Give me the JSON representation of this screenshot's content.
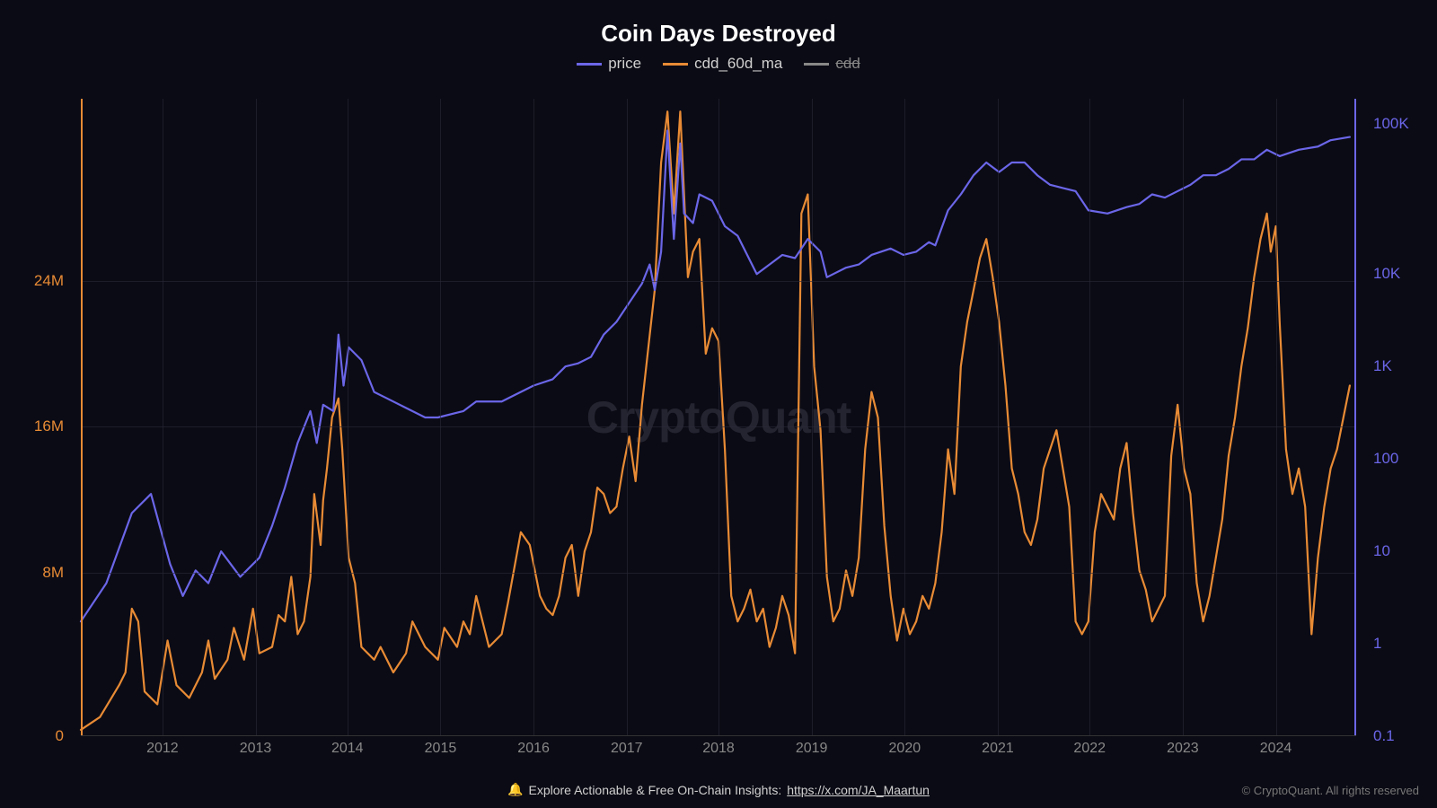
{
  "chart": {
    "type": "line-dual-axis",
    "title": "Coin Days Destroyed",
    "background_color": "#0b0b15",
    "grid_color": "#2a2a38",
    "watermark_text": "CryptoQuant",
    "watermark_color": "#3a3a48",
    "title_fontsize": 26,
    "legend_fontsize": 17,
    "tick_fontsize": 17,
    "legend": [
      {
        "label": "price",
        "color": "#6b66e8",
        "disabled": false
      },
      {
        "label": "cdd_60d_ma",
        "color": "#e88b35",
        "disabled": false
      },
      {
        "label": "cdd",
        "color": "#888888",
        "disabled": true
      }
    ],
    "x_axis": {
      "ticks": [
        "2012",
        "2013",
        "2014",
        "2015",
        "2016",
        "2017",
        "2018",
        "2019",
        "2020",
        "2021",
        "2022",
        "2023",
        "2024"
      ],
      "positions_pct": [
        6.4,
        13.7,
        20.9,
        28.2,
        35.5,
        42.8,
        50.0,
        57.3,
        64.6,
        71.9,
        79.1,
        86.4,
        93.7
      ],
      "color": "#888"
    },
    "y_axis_left": {
      "label_color": "#e88b35",
      "ticks": [
        "0",
        "8M",
        "16M",
        "24M"
      ],
      "positions_pct": [
        100,
        74.3,
        51.4,
        28.6
      ],
      "axis_color": "#e88b35"
    },
    "y_axis_right": {
      "label_color": "#6b66e8",
      "scale": "log",
      "ticks": [
        "0.1",
        "1",
        "10",
        "100",
        "1K",
        "10K",
        "100K"
      ],
      "positions_pct": [
        100,
        85.5,
        71.0,
        56.5,
        42.0,
        27.5,
        4.0
      ],
      "axis_color": "#6b66e8"
    },
    "series": {
      "price": {
        "color": "#6b66e8",
        "line_width": 2.2,
        "axis": "right",
        "points": [
          [
            0,
            82
          ],
          [
            2,
            76
          ],
          [
            4,
            65
          ],
          [
            5.5,
            62
          ],
          [
            7,
            73
          ],
          [
            8,
            78
          ],
          [
            9,
            74
          ],
          [
            10,
            76
          ],
          [
            11,
            71
          ],
          [
            12.5,
            75
          ],
          [
            14,
            72
          ],
          [
            15,
            67
          ],
          [
            16,
            61
          ],
          [
            17,
            54
          ],
          [
            18,
            49
          ],
          [
            18.5,
            54
          ],
          [
            19,
            48
          ],
          [
            19.8,
            49
          ],
          [
            20.2,
            37
          ],
          [
            20.6,
            45
          ],
          [
            21,
            39
          ],
          [
            22,
            41
          ],
          [
            23,
            46
          ],
          [
            24,
            47
          ],
          [
            25.5,
            48.5
          ],
          [
            27,
            50
          ],
          [
            28,
            50
          ],
          [
            30,
            49
          ],
          [
            31,
            47.5
          ],
          [
            33,
            47.5
          ],
          [
            34,
            46.5
          ],
          [
            35.5,
            45
          ],
          [
            37,
            44
          ],
          [
            38,
            42
          ],
          [
            39,
            41.5
          ],
          [
            40,
            40.5
          ],
          [
            41,
            37
          ],
          [
            42,
            35
          ],
          [
            43,
            32
          ],
          [
            44,
            29
          ],
          [
            44.6,
            26
          ],
          [
            45,
            30
          ],
          [
            45.5,
            24
          ],
          [
            46,
            5
          ],
          [
            46.5,
            22
          ],
          [
            47,
            7
          ],
          [
            47.3,
            18
          ],
          [
            48,
            19.5
          ],
          [
            48.5,
            15
          ],
          [
            49.5,
            16
          ],
          [
            50.5,
            20
          ],
          [
            51.5,
            21.5
          ],
          [
            53,
            27.5
          ],
          [
            54,
            26
          ],
          [
            55,
            24.5
          ],
          [
            56,
            25
          ],
          [
            57,
            22
          ],
          [
            58,
            24
          ],
          [
            58.5,
            28
          ],
          [
            60,
            26.5
          ],
          [
            61,
            26
          ],
          [
            62,
            24.5
          ],
          [
            63.5,
            23.5
          ],
          [
            64.5,
            24.5
          ],
          [
            65.5,
            24
          ],
          [
            66.5,
            22.5
          ],
          [
            67,
            23
          ],
          [
            68,
            17.5
          ],
          [
            69,
            15
          ],
          [
            70,
            12
          ],
          [
            71,
            10
          ],
          [
            72,
            11.5
          ],
          [
            73,
            10
          ],
          [
            74,
            10
          ],
          [
            75,
            12
          ],
          [
            76,
            13.5
          ],
          [
            77,
            14
          ],
          [
            78,
            14.5
          ],
          [
            79,
            17.5
          ],
          [
            80.5,
            18
          ],
          [
            82,
            17
          ],
          [
            83,
            16.5
          ],
          [
            84,
            15
          ],
          [
            85,
            15.5
          ],
          [
            86,
            14.5
          ],
          [
            87,
            13.5
          ],
          [
            88,
            12
          ],
          [
            89,
            12
          ],
          [
            90,
            11
          ],
          [
            91,
            9.5
          ],
          [
            92,
            9.5
          ],
          [
            93,
            8
          ],
          [
            94,
            9
          ],
          [
            95.5,
            8
          ],
          [
            97,
            7.5
          ],
          [
            98,
            6.5
          ],
          [
            99.5,
            6
          ]
        ]
      },
      "cdd_60d_ma": {
        "color": "#e88b35",
        "line_width": 2.2,
        "axis": "left",
        "points": [
          [
            0,
            99
          ],
          [
            1.5,
            97
          ],
          [
            3,
            92
          ],
          [
            3.5,
            90
          ],
          [
            4,
            80
          ],
          [
            4.5,
            82
          ],
          [
            5,
            93
          ],
          [
            6,
            95
          ],
          [
            6.8,
            85
          ],
          [
            7.5,
            92
          ],
          [
            8.5,
            94
          ],
          [
            9.5,
            90
          ],
          [
            10,
            85
          ],
          [
            10.5,
            91
          ],
          [
            11.5,
            88
          ],
          [
            12,
            83
          ],
          [
            12.8,
            88
          ],
          [
            13.5,
            80
          ],
          [
            14,
            87
          ],
          [
            15,
            86
          ],
          [
            15.5,
            81
          ],
          [
            16,
            82
          ],
          [
            16.5,
            75
          ],
          [
            17,
            84
          ],
          [
            17.5,
            82
          ],
          [
            18,
            75
          ],
          [
            18.3,
            62
          ],
          [
            18.8,
            70
          ],
          [
            19,
            63
          ],
          [
            19.3,
            58
          ],
          [
            19.7,
            50
          ],
          [
            20.2,
            47
          ],
          [
            20.5,
            55
          ],
          [
            21,
            72
          ],
          [
            21.5,
            76
          ],
          [
            22,
            86
          ],
          [
            23,
            88
          ],
          [
            23.5,
            86
          ],
          [
            24.5,
            90
          ],
          [
            25.5,
            87
          ],
          [
            26,
            82
          ],
          [
            27,
            86
          ],
          [
            28,
            88
          ],
          [
            28.5,
            83
          ],
          [
            29.5,
            86
          ],
          [
            30,
            82
          ],
          [
            30.5,
            84
          ],
          [
            31,
            78
          ],
          [
            32,
            86
          ],
          [
            33,
            84
          ],
          [
            33.5,
            79
          ],
          [
            34.5,
            68
          ],
          [
            35.2,
            70
          ],
          [
            36,
            78
          ],
          [
            36.5,
            80
          ],
          [
            37,
            81
          ],
          [
            37.5,
            78
          ],
          [
            38,
            72
          ],
          [
            38.5,
            70
          ],
          [
            39,
            78
          ],
          [
            39.5,
            71
          ],
          [
            40,
            68
          ],
          [
            40.5,
            61
          ],
          [
            41,
            62
          ],
          [
            41.5,
            65
          ],
          [
            42,
            64
          ],
          [
            42.5,
            58
          ],
          [
            43,
            53
          ],
          [
            43.5,
            60
          ],
          [
            44,
            48
          ],
          [
            44.5,
            39
          ],
          [
            45,
            30
          ],
          [
            45.5,
            10
          ],
          [
            46,
            2
          ],
          [
            46.5,
            18
          ],
          [
            47,
            2
          ],
          [
            47.3,
            15
          ],
          [
            47.6,
            28
          ],
          [
            48,
            24
          ],
          [
            48.5,
            22
          ],
          [
            49,
            40
          ],
          [
            49.5,
            36
          ],
          [
            50,
            38
          ],
          [
            50.5,
            55
          ],
          [
            51,
            78
          ],
          [
            51.5,
            82
          ],
          [
            52,
            80
          ],
          [
            52.5,
            77
          ],
          [
            53,
            82
          ],
          [
            53.5,
            80
          ],
          [
            54,
            86
          ],
          [
            54.5,
            83
          ],
          [
            55,
            78
          ],
          [
            55.5,
            81
          ],
          [
            56,
            87
          ],
          [
            56.5,
            18
          ],
          [
            57,
            15
          ],
          [
            57.5,
            42
          ],
          [
            58,
            52
          ],
          [
            58.5,
            75
          ],
          [
            59,
            82
          ],
          [
            59.5,
            80
          ],
          [
            60,
            74
          ],
          [
            60.5,
            78
          ],
          [
            61,
            72
          ],
          [
            61.5,
            55
          ],
          [
            62,
            46
          ],
          [
            62.5,
            50
          ],
          [
            63,
            67
          ],
          [
            63.5,
            78
          ],
          [
            64,
            85
          ],
          [
            64.5,
            80
          ],
          [
            65,
            84
          ],
          [
            65.5,
            82
          ],
          [
            66,
            78
          ],
          [
            66.5,
            80
          ],
          [
            67,
            76
          ],
          [
            67.5,
            68
          ],
          [
            68,
            55
          ],
          [
            68.5,
            62
          ],
          [
            69,
            42
          ],
          [
            69.5,
            35
          ],
          [
            70,
            30
          ],
          [
            70.5,
            25
          ],
          [
            71,
            22
          ],
          [
            71.5,
            28
          ],
          [
            72,
            35
          ],
          [
            72.5,
            45
          ],
          [
            73,
            58
          ],
          [
            73.5,
            62
          ],
          [
            74,
            68
          ],
          [
            74.5,
            70
          ],
          [
            75,
            66
          ],
          [
            75.5,
            58
          ],
          [
            76,
            55
          ],
          [
            76.5,
            52
          ],
          [
            77,
            58
          ],
          [
            77.5,
            64
          ],
          [
            78,
            82
          ],
          [
            78.5,
            84
          ],
          [
            79,
            82
          ],
          [
            79.5,
            68
          ],
          [
            80,
            62
          ],
          [
            80.5,
            64
          ],
          [
            81,
            66
          ],
          [
            81.5,
            58
          ],
          [
            82,
            54
          ],
          [
            82.5,
            65
          ],
          [
            83,
            74
          ],
          [
            83.5,
            77
          ],
          [
            84,
            82
          ],
          [
            84.5,
            80
          ],
          [
            85,
            78
          ],
          [
            85.5,
            56
          ],
          [
            86,
            48
          ],
          [
            86.5,
            58
          ],
          [
            87,
            62
          ],
          [
            87.5,
            76
          ],
          [
            88,
            82
          ],
          [
            88.5,
            78
          ],
          [
            89,
            72
          ],
          [
            89.5,
            66
          ],
          [
            90,
            56
          ],
          [
            90.5,
            50
          ],
          [
            91,
            42
          ],
          [
            91.5,
            36
          ],
          [
            92,
            28
          ],
          [
            92.5,
            22
          ],
          [
            93,
            18
          ],
          [
            93.3,
            24
          ],
          [
            93.7,
            20
          ],
          [
            94,
            35
          ],
          [
            94.5,
            55
          ],
          [
            95,
            62
          ],
          [
            95.5,
            58
          ],
          [
            96,
            64
          ],
          [
            96.5,
            84
          ],
          [
            97,
            72
          ],
          [
            97.5,
            64
          ],
          [
            98,
            58
          ],
          [
            98.5,
            55
          ],
          [
            99,
            50
          ],
          [
            99.5,
            45
          ]
        ]
      }
    }
  },
  "footer": {
    "icon": "🔔",
    "message": "Explore Actionable & Free On-Chain Insights:",
    "link_text": "https://x.com/JA_Maartun",
    "copyright": "© CryptoQuant. All rights reserved"
  }
}
